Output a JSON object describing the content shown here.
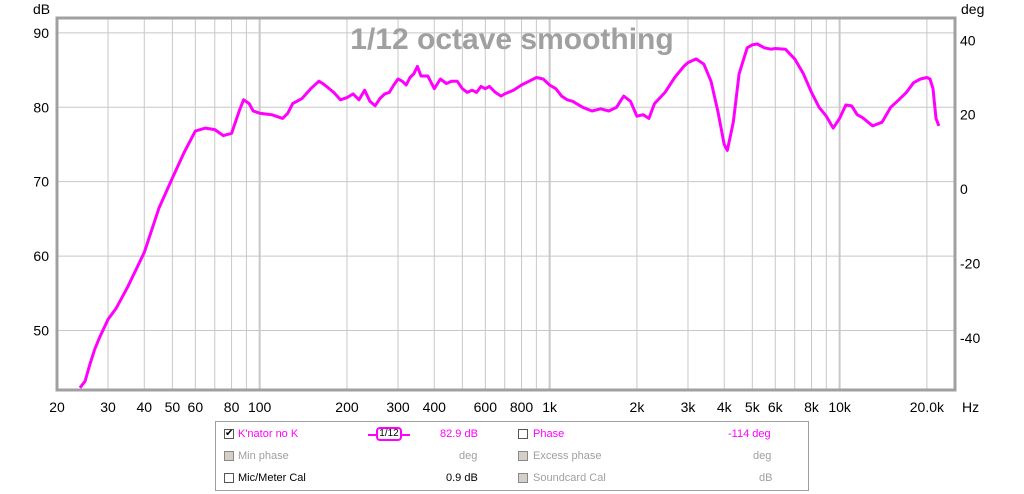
{
  "chart_data": {
    "type": "line",
    "title": "1/12 octave smoothing",
    "xlabel": "Hz",
    "ylabel": "dB",
    "y2label": "deg",
    "xscale": "log",
    "xlim": [
      20,
      25000
    ],
    "ylim": [
      42,
      92
    ],
    "y2lim": [
      -54,
      46
    ],
    "grid": true,
    "x_tick_labels": [
      "20",
      "30",
      "40",
      "50",
      "60",
      "80",
      "100",
      "200",
      "300",
      "400",
      "600",
      "800",
      "1k",
      "2k",
      "3k",
      "4k",
      "5k",
      "6k",
      "8k",
      "10k",
      "20.0k"
    ],
    "x_tick_values": [
      20,
      30,
      40,
      50,
      60,
      80,
      100,
      200,
      300,
      400,
      600,
      800,
      1000,
      2000,
      3000,
      4000,
      5000,
      6000,
      8000,
      10000,
      20000
    ],
    "y_ticks": [
      50,
      60,
      70,
      80,
      90
    ],
    "y2_ticks": [
      -40,
      -20,
      0,
      20,
      40
    ],
    "series": [
      {
        "name": "K'nator no K",
        "color": "#ff00ff",
        "x": [
          24,
          25,
          26,
          27,
          28,
          30,
          32,
          35,
          40,
          45,
          50,
          55,
          60,
          65,
          70,
          75,
          80,
          85,
          88,
          92,
          95,
          100,
          110,
          120,
          125,
          130,
          140,
          150,
          160,
          165,
          170,
          180,
          190,
          200,
          210,
          220,
          230,
          240,
          250,
          260,
          270,
          280,
          290,
          300,
          310,
          320,
          330,
          340,
          350,
          360,
          380,
          400,
          420,
          440,
          460,
          480,
          500,
          520,
          540,
          560,
          580,
          600,
          620,
          650,
          680,
          700,
          750,
          800,
          850,
          900,
          950,
          1000,
          1050,
          1100,
          1150,
          1200,
          1300,
          1400,
          1500,
          1600,
          1700,
          1800,
          1900,
          2000,
          2100,
          2200,
          2300,
          2500,
          2700,
          2900,
          3000,
          3200,
          3400,
          3600,
          3800,
          4000,
          4100,
          4300,
          4500,
          4800,
          5000,
          5200,
          5500,
          5800,
          6000,
          6500,
          7000,
          7500,
          8000,
          8500,
          9000,
          9500,
          10000,
          10500,
          11000,
          11500,
          12000,
          13000,
          14000,
          15000,
          16000,
          17000,
          18000,
          19000,
          20000,
          20500,
          21000,
          21500,
          22000
        ],
        "y": [
          42.3,
          43.2,
          45.5,
          47.5,
          49.0,
          51.5,
          53.0,
          55.8,
          60.5,
          66.5,
          70.5,
          74.0,
          76.8,
          77.2,
          77.0,
          76.2,
          76.5,
          79.5,
          81.0,
          80.5,
          79.5,
          79.2,
          79.0,
          78.5,
          79.2,
          80.5,
          81.2,
          82.5,
          83.5,
          83.2,
          82.8,
          82.0,
          81.0,
          81.3,
          81.8,
          81.0,
          82.3,
          80.8,
          80.2,
          81.2,
          81.8,
          82.0,
          83.0,
          83.8,
          83.5,
          83.0,
          84.0,
          84.5,
          85.5,
          84.2,
          84.2,
          82.5,
          83.8,
          83.2,
          83.5,
          83.5,
          82.5,
          82.0,
          82.3,
          82.0,
          82.8,
          82.5,
          82.8,
          82.0,
          81.5,
          81.8,
          82.3,
          83.0,
          83.5,
          84.0,
          83.8,
          83.0,
          82.5,
          81.5,
          81.0,
          80.8,
          80.0,
          79.5,
          79.8,
          79.5,
          80.0,
          81.5,
          80.8,
          78.8,
          79.0,
          78.5,
          80.5,
          82.0,
          84.0,
          85.5,
          86.0,
          86.5,
          85.8,
          83.5,
          79.5,
          75.0,
          74.2,
          78.0,
          84.5,
          88.0,
          88.4,
          88.5,
          88.0,
          87.8,
          87.9,
          87.8,
          86.5,
          84.5,
          82.0,
          80.0,
          78.8,
          77.2,
          78.5,
          80.3,
          80.2,
          79.0,
          78.6,
          77.5,
          78.0,
          80.0,
          81.0,
          82.0,
          83.3,
          83.8,
          84.0,
          83.8,
          82.5,
          78.5,
          77.5
        ]
      }
    ]
  },
  "legend": {
    "row1": {
      "trace_label": "K'nator no K",
      "trace_checked": "✔",
      "smoothing_glyph": "1/12",
      "value": "82.9 dB",
      "phase_label": "Phase",
      "phase_value": "-114 deg"
    },
    "row2": {
      "min_phase_label": "Min phase",
      "min_phase_unit": "deg",
      "excess_phase_label": "Excess phase",
      "excess_phase_unit": "deg"
    },
    "row3": {
      "mic_cal_label": "Mic/Meter Cal",
      "mic_cal_value": "0.9 dB",
      "soundcard_cal_label": "Soundcard Cal",
      "soundcard_cal_unit": "dB"
    }
  },
  "colors": {
    "trace": "#ff00ff",
    "grid": "#c8c8c8",
    "frame": "#a0a0a0"
  }
}
